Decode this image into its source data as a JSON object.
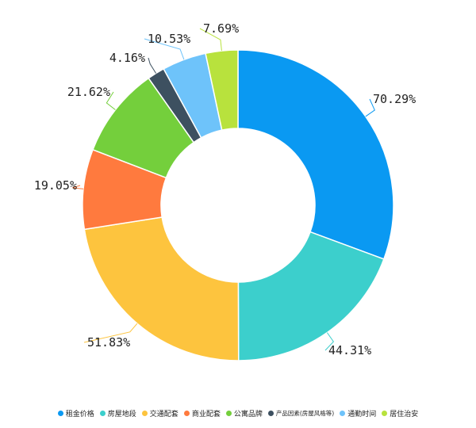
{
  "chart_data": {
    "type": "pie",
    "variant": "donut",
    "title": "",
    "legend_position": "bottom",
    "categories": [
      "租金价格",
      "房屋地段",
      "交通配套",
      "商业配套",
      "公寓品牌",
      "产品因素(房屋风格等)",
      "通勤时间",
      "居住治安"
    ],
    "values": [
      70.29,
      44.31,
      51.83,
      19.05,
      21.62,
      4.16,
      10.53,
      7.69
    ],
    "value_labels": [
      "70.29%",
      "44.31%",
      "51.83%",
      "19.05%",
      "21.62%",
      "4.16%",
      "10.53%",
      "7.69%"
    ],
    "colors": [
      "#0a99f2",
      "#3ccfcc",
      "#fdc43e",
      "#ff7a3e",
      "#74cf3c",
      "#3d5060",
      "#6ec3fa",
      "#b8e23d"
    ]
  }
}
